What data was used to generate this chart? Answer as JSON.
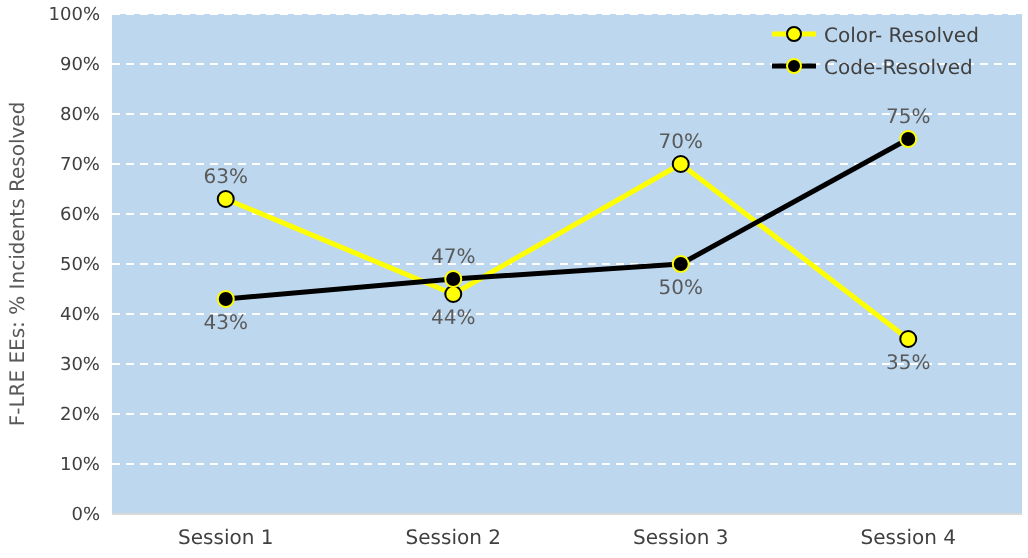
{
  "chart_data": {
    "type": "line",
    "ylabel": "F-LRE EEs: % Incidents Resolved",
    "categories": [
      "Session 1",
      "Session 2",
      "Session 3",
      "Session 4"
    ],
    "series": [
      {
        "name": "Color- Resolved",
        "color": "#ffff00",
        "values": [
          63,
          44,
          70,
          35
        ],
        "value_labels": [
          "63%",
          "44%",
          "70%",
          "35%"
        ]
      },
      {
        "name": "Code-Resolved",
        "color": "#000000",
        "values": [
          43,
          47,
          50,
          75
        ],
        "value_labels": [
          "43%",
          "47%",
          "50%",
          "75%"
        ]
      }
    ],
    "ylim": [
      0,
      100
    ],
    "yticks": [
      {
        "value": 0,
        "label": "0%"
      },
      {
        "value": 10,
        "label": "10%"
      },
      {
        "value": 20,
        "label": "20%"
      },
      {
        "value": 30,
        "label": "30%"
      },
      {
        "value": 40,
        "label": "40%"
      },
      {
        "value": 50,
        "label": "50%"
      },
      {
        "value": 60,
        "label": "60%"
      },
      {
        "value": 70,
        "label": "70%"
      },
      {
        "value": 80,
        "label": "80%"
      },
      {
        "value": 90,
        "label": "90%"
      },
      {
        "value": 100,
        "label": "100%"
      }
    ],
    "grid": "y",
    "legend": "top right",
    "marker": "circle",
    "line_style": "solid"
  }
}
